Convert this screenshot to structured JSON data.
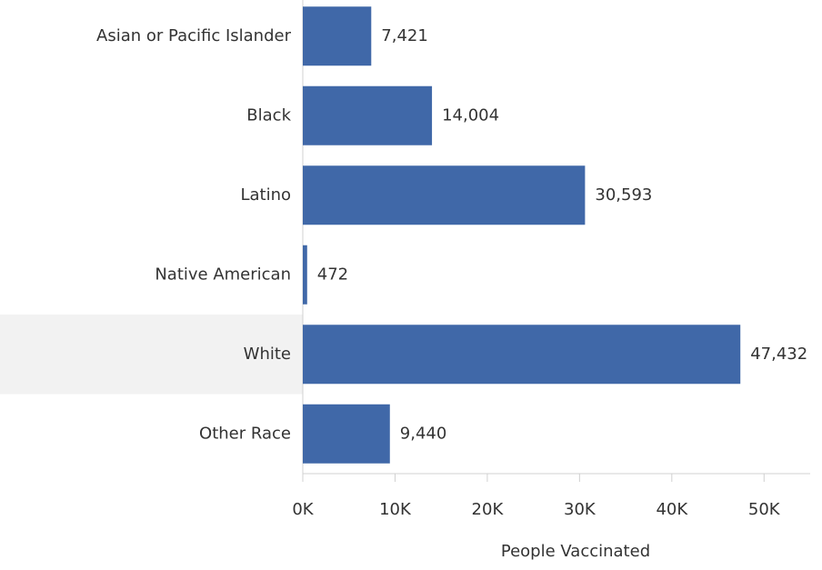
{
  "chart_data": {
    "type": "barh",
    "categories": [
      "Asian or Pacific Islander",
      "Black",
      "Latino",
      "Native American",
      "White",
      "Other Race"
    ],
    "values": [
      7421,
      14004,
      30593,
      472,
      47432,
      9440
    ],
    "value_labels": [
      "7,421",
      "14,004",
      "30,593",
      "472",
      "47,432",
      "9,440"
    ],
    "color": "#4068a8",
    "xlim": [
      0,
      55000
    ],
    "xticks": [
      {
        "value": 0,
        "label": "0K"
      },
      {
        "value": 10000,
        "label": "10K"
      },
      {
        "value": 20000,
        "label": "20K"
      },
      {
        "value": 30000,
        "label": "30K"
      },
      {
        "value": 40000,
        "label": "40K"
      },
      {
        "value": 50000,
        "label": "50K"
      }
    ],
    "xlabel": "People Vaccinated",
    "highlight": 4
  }
}
